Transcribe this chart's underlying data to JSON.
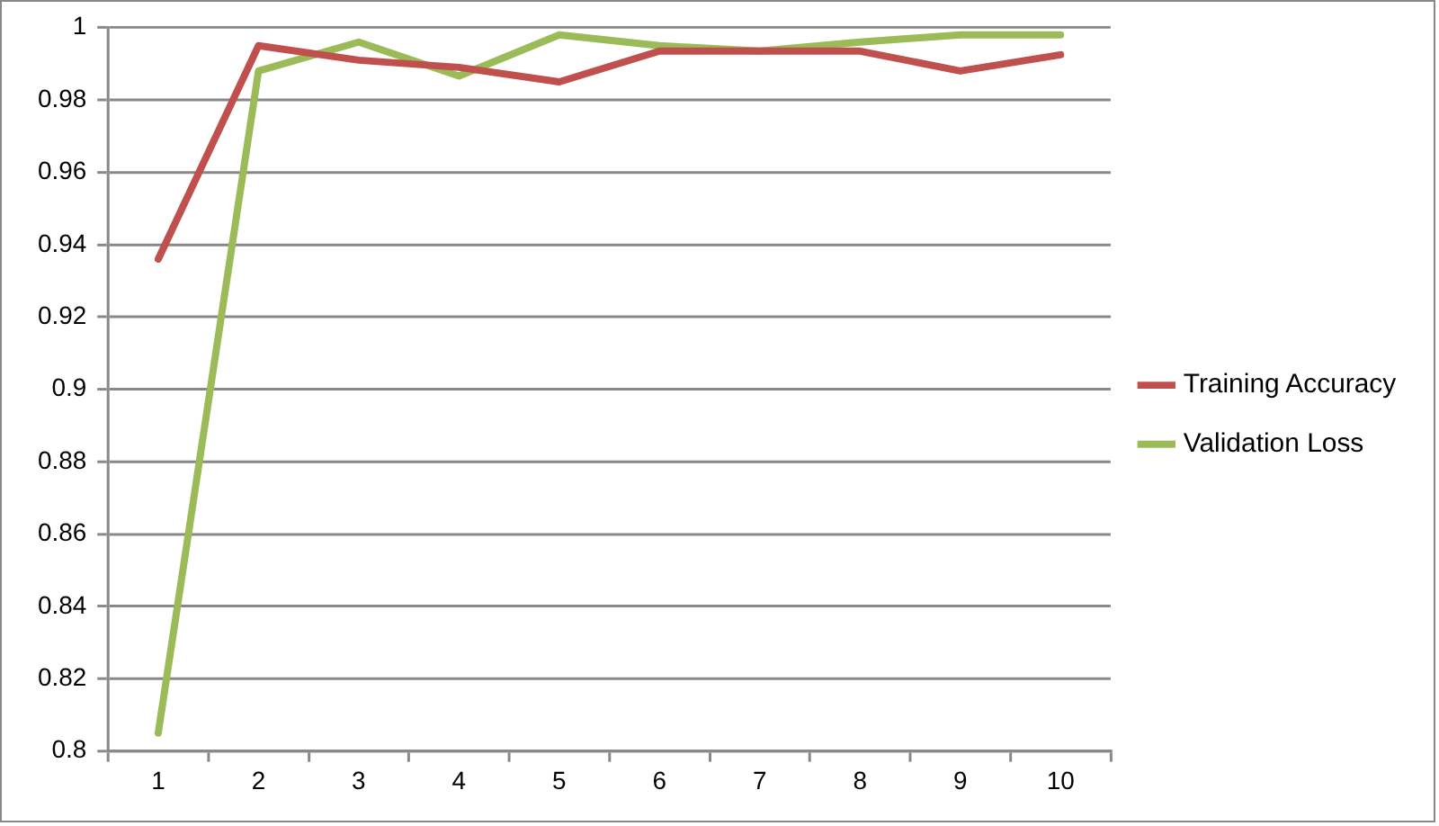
{
  "chart_data": {
    "type": "line",
    "categories": [
      "1",
      "2",
      "3",
      "4",
      "5",
      "6",
      "7",
      "8",
      "9",
      "10"
    ],
    "series": [
      {
        "name": "Training Accuracy",
        "color": "#c0504d",
        "values": [
          0.936,
          0.995,
          0.991,
          0.989,
          0.985,
          0.9935,
          0.9935,
          0.9935,
          0.988,
          0.9925
        ]
      },
      {
        "name": "Validation Loss",
        "color": "#9bbb59",
        "values": [
          0.805,
          0.988,
          0.996,
          0.9866,
          0.998,
          0.995,
          0.9935,
          0.996,
          0.998,
          0.998
        ]
      }
    ],
    "ylim": [
      0.8,
      1
    ],
    "yticks": [
      0.8,
      0.82,
      0.84,
      0.86,
      0.88,
      0.9,
      0.92,
      0.94,
      0.96,
      0.98,
      1
    ],
    "grid": "y",
    "legend": "right",
    "marker": "none",
    "line_style": "solid"
  }
}
